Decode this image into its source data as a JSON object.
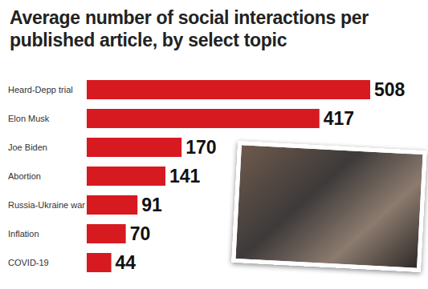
{
  "chart_data": {
    "type": "bar",
    "title": "Average number of social interactions per published article, by select topic",
    "categories": [
      "Heard-Depp trial",
      "Elon Musk",
      "Joe Biden",
      "Abortion",
      "Russia-Ukraine war",
      "Inflation",
      "COVID-19"
    ],
    "values": [
      508,
      417,
      170,
      141,
      91,
      70,
      44
    ],
    "color": "#d71920",
    "orientation": "horizontal",
    "data_labels": true,
    "tick_labels": "y"
  }
}
